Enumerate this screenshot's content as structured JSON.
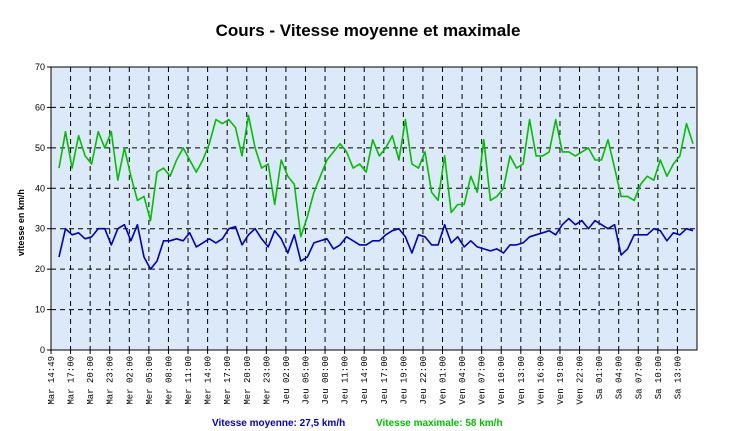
{
  "chart_data": {
    "type": "line",
    "title": "Cours - Vitesse moyenne et maximale",
    "ylabel": "vitesse en km/h",
    "xlabel": "",
    "ylim": [
      0,
      70
    ],
    "yticks": [
      0,
      10,
      20,
      30,
      40,
      50,
      60,
      70
    ],
    "grid": true,
    "background": "#dce9f8",
    "x_tick_labels": [
      "Mar 14:49",
      "Mar 17:00",
      "Mar 20:00",
      "Mar 23:00",
      "Mer 02:00",
      "Mer 05:00",
      "Mer 08:00",
      "Mer 11:00",
      "Mer 14:00",
      "Mer 17:00",
      "Mer 20:00",
      "Mer 23:00",
      "Jeu 02:00",
      "Jeu 05:00",
      "Jeu 08:00",
      "Jeu 11:00",
      "Jeu 14:00",
      "Jeu 17:00",
      "Jeu 19:00",
      "Jeu 22:00",
      "Ven 01:00",
      "Ven 04:00",
      "Ven 07:00",
      "Ven 10:00",
      "Ven 13:00",
      "Ven 16:00",
      "Ven 19:00",
      "Ven 22:00",
      "Sa 01:00",
      "Sa 04:00",
      "Sa 07:00",
      "Sa 10:00",
      "Sa 13:00"
    ],
    "series": [
      {
        "name": "Vitesse maximale",
        "color": "#00c000",
        "values": [
          45,
          54,
          45,
          53,
          48,
          46,
          54,
          50,
          54,
          42,
          50,
          43,
          37,
          38,
          32,
          44,
          45,
          43,
          47,
          50,
          47,
          44,
          47,
          51,
          57,
          56,
          57,
          55,
          48,
          58,
          50,
          45,
          46,
          36,
          47,
          43,
          41,
          28,
          33,
          39,
          43,
          47,
          49,
          51,
          49,
          45,
          46,
          44,
          52,
          48,
          50,
          53,
          47,
          57,
          46,
          45,
          49,
          39,
          37,
          48,
          34,
          36,
          36,
          43,
          39,
          52,
          37,
          38,
          40,
          48,
          45,
          46,
          57,
          48,
          48,
          49,
          57,
          49,
          49,
          48,
          49,
          50,
          47,
          47,
          52,
          45,
          38,
          38,
          37,
          41,
          43,
          42,
          47,
          43,
          46,
          48,
          56,
          51
        ]
      },
      {
        "name": "Vitesse moyenne",
        "color": "#0000c0",
        "values": [
          23,
          30,
          28.5,
          29,
          27.5,
          28,
          30,
          30,
          26,
          30,
          31,
          27,
          31,
          23,
          20,
          22,
          27,
          27,
          27.5,
          27,
          29,
          25.5,
          26.5,
          27.5,
          26.5,
          27.5,
          30,
          30.5,
          26,
          28.5,
          30,
          27.5,
          25.5,
          29.5,
          27.5,
          24,
          28.5,
          22,
          23,
          26.5,
          27,
          27.5,
          25,
          26,
          28,
          27,
          26,
          26,
          27,
          27,
          28.5,
          29.5,
          30,
          28,
          24,
          28.5,
          28,
          26,
          26,
          31,
          26.5,
          28,
          25.5,
          27,
          25.5,
          25,
          24.5,
          25,
          24,
          26,
          26,
          26.5,
          28,
          28.5,
          29,
          29.5,
          28.5,
          31,
          32.5,
          31,
          32,
          30,
          32,
          31,
          30,
          31,
          23.5,
          25,
          28.5,
          28.5,
          28.5,
          30,
          29.5,
          27,
          29,
          28.5,
          30,
          29.5
        ]
      }
    ],
    "legend": [
      {
        "text": "Vitesse moyenne: 27,5 km/h",
        "color": "#0000c0"
      },
      {
        "text": "Vitesse maximale: 58 km/h",
        "color": "#00c000"
      }
    ],
    "legend_position": "bottom"
  }
}
